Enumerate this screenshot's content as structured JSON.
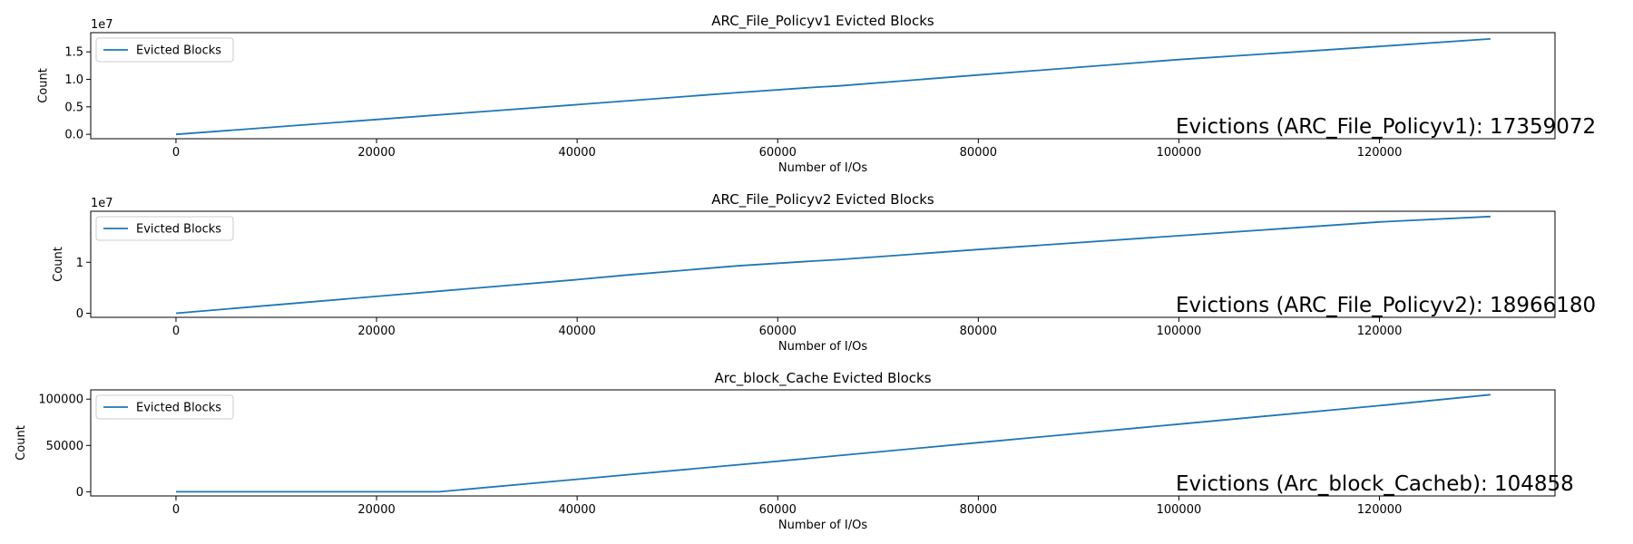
{
  "chart_data": [
    {
      "type": "line",
      "title": "ARC_File_Policyv1 Evicted Blocks",
      "xlabel": "Number of I/Os",
      "ylabel": "Count",
      "y_offset_label": "1e7",
      "xlim": [
        -8500,
        137500
      ],
      "ylim": [
        -0.08,
        1.85
      ],
      "xticks": [
        0,
        20000,
        40000,
        60000,
        80000,
        100000,
        120000
      ],
      "xtick_labels": [
        "0",
        "20000",
        "40000",
        "60000",
        "80000",
        "100000",
        "120000"
      ],
      "yticks": [
        0,
        0.5,
        1.0,
        1.5
      ],
      "ytick_labels": [
        "0.0",
        "0.5",
        "1.0",
        "1.5"
      ],
      "legend": "upper-left",
      "color": "#1f77b4",
      "annotation": "Evictions (ARC_File_Policyv1): 17359072",
      "series": [
        {
          "name": "Evicted Blocks",
          "x": [
            0,
            20000,
            40000,
            56000,
            64000,
            66000,
            80000,
            100000,
            120000,
            131072
          ],
          "y": [
            0,
            0.27,
            0.54,
            0.76,
            0.86,
            0.88,
            1.08,
            1.36,
            1.6,
            1.7359072
          ]
        }
      ]
    },
    {
      "type": "line",
      "title": "ARC_File_Policyv2 Evicted Blocks",
      "xlabel": "Number of I/Os",
      "ylabel": "Count",
      "y_offset_label": "1e7",
      "xlim": [
        -8500,
        137500
      ],
      "ylim": [
        -0.08,
        2.0
      ],
      "xticks": [
        0,
        20000,
        40000,
        60000,
        80000,
        100000,
        120000
      ],
      "xtick_labels": [
        "0",
        "20000",
        "40000",
        "60000",
        "80000",
        "100000",
        "120000"
      ],
      "yticks": [
        0,
        1
      ],
      "ytick_labels": [
        "0",
        "1"
      ],
      "legend": "upper-left",
      "color": "#1f77b4",
      "annotation": "Evictions (ARC_File_Policyv2): 18966180",
      "series": [
        {
          "name": "Evicted Blocks",
          "x": [
            0,
            20000,
            40000,
            45000,
            56000,
            64000,
            66000,
            80000,
            100000,
            120000,
            131072
          ],
          "y": [
            0,
            0.33,
            0.66,
            0.75,
            0.93,
            1.03,
            1.05,
            1.25,
            1.52,
            1.79,
            1.896618
          ]
        }
      ]
    },
    {
      "type": "line",
      "title": "Arc_block_Cache Evicted Blocks",
      "xlabel": "Number of I/Os",
      "ylabel": "Count",
      "y_offset_label": "",
      "xlim": [
        -8500,
        137500
      ],
      "ylim": [
        -4500,
        110000
      ],
      "xticks": [
        0,
        20000,
        40000,
        60000,
        80000,
        100000,
        120000
      ],
      "xtick_labels": [
        "0",
        "20000",
        "40000",
        "60000",
        "80000",
        "100000",
        "120000"
      ],
      "yticks": [
        0,
        50000,
        100000
      ],
      "ytick_labels": [
        "0",
        "50000",
        "100000"
      ],
      "legend": "upper-left",
      "color": "#1f77b4",
      "annotation": "Evictions (Arc_block_Cacheb): 104858",
      "series": [
        {
          "name": "Evicted Blocks",
          "x": [
            0,
            26214,
            40000,
            60000,
            80000,
            100000,
            120000,
            131072
          ],
          "y": [
            0,
            0,
            13500,
            33000,
            53000,
            73000,
            93000,
            104858
          ]
        }
      ]
    }
  ]
}
